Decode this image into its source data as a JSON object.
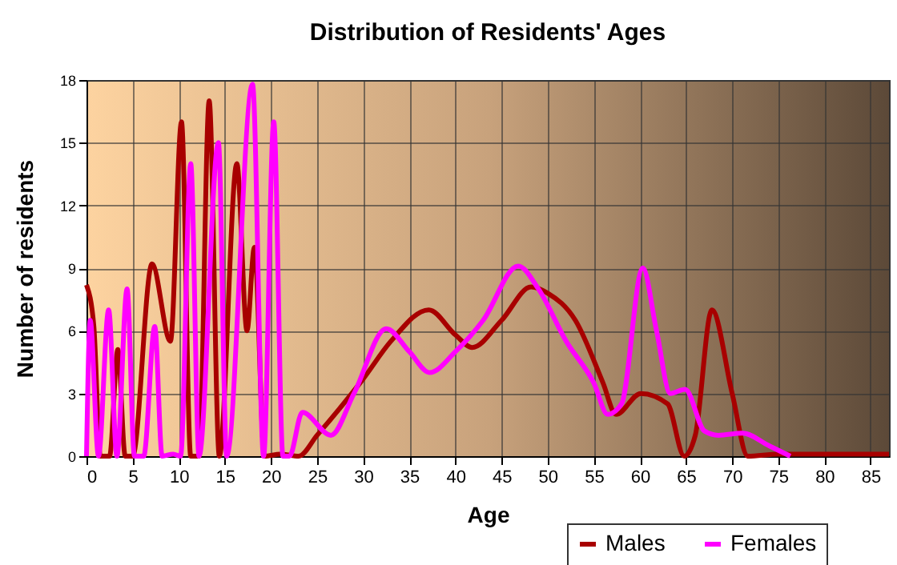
{
  "chart_data": {
    "type": "line",
    "title": "Distribution of Residents' Ages",
    "xlabel": "Age",
    "ylabel": "Number of residents",
    "xlim": [
      0,
      87
    ],
    "xticks": [
      0,
      5,
      10,
      15,
      20,
      25,
      30,
      35,
      40,
      45,
      50,
      55,
      60,
      65,
      70,
      75,
      80,
      85
    ],
    "ylim": [
      0,
      18
    ],
    "yticks": [
      0,
      3,
      6,
      9,
      12,
      15,
      18
    ],
    "grid": true,
    "legend": "bottom right",
    "series": [
      {
        "name": "Males",
        "color": "#a80000",
        "x": [
          0,
          0.8,
          1.5,
          2.5,
          3.4,
          4.2,
          5,
          7.1,
          9.1,
          10.3,
          11.3,
          12.2,
          13.3,
          14.4,
          16.3,
          17.4,
          18.2,
          19.3,
          21,
          23,
          25,
          30,
          33,
          37.1,
          40,
          41.8,
          45,
          48.2,
          50,
          53,
          56,
          57.4,
          60.1,
          63,
          64.8,
          66,
          67.8,
          70,
          71.7,
          75,
          80,
          87
        ],
        "values": [
          8.2,
          6.2,
          0,
          0,
          5.1,
          0,
          0,
          9.2,
          5.5,
          16,
          0,
          0,
          17,
          0,
          14,
          6,
          10,
          0,
          0.1,
          0,
          1,
          3.7,
          5.5,
          7,
          5.8,
          5.2,
          6.5,
          8.1,
          7.8,
          6.5,
          3.5,
          2,
          3,
          2.5,
          0,
          1,
          7,
          3,
          0,
          0.1,
          0.1,
          0.1
        ]
      },
      {
        "name": "Females",
        "color": "#ff00ff",
        "x": [
          0,
          0.4,
          1.3,
          2.4,
          3.3,
          4.4,
          5.2,
          6.2,
          7.4,
          8.2,
          9.4,
          10.2,
          11.3,
          12.2,
          14.3,
          15.2,
          18,
          19.2,
          20.3,
          21.3,
          22,
          23.4,
          26.5,
          29,
          32.5,
          35,
          37.2,
          40,
          43,
          46.8,
          49,
          52,
          55,
          56.5,
          58,
          60.3,
          61.8,
          63.3,
          64.9,
          67,
          68.5,
          71.1,
          74,
          76.3
        ],
        "values": [
          0,
          6.5,
          0,
          7,
          0,
          8,
          0,
          0,
          6.2,
          0,
          0.1,
          0,
          14,
          0,
          15,
          0,
          17.8,
          0,
          16,
          0,
          0,
          2.1,
          1,
          3,
          6.1,
          5,
          4,
          5,
          6.5,
          9.1,
          8,
          5.5,
          3.5,
          2,
          2.5,
          9,
          6,
          3,
          3.2,
          1.2,
          1,
          1.1,
          0.5,
          0
        ]
      }
    ]
  }
}
